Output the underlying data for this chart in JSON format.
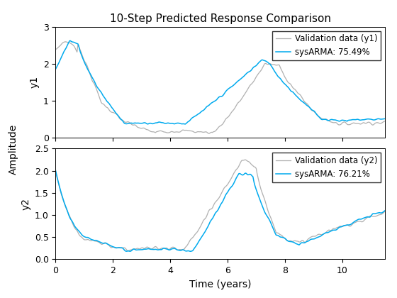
{
  "title": "10-Step Predicted Response Comparison",
  "xlabel": "Time (years)",
  "ylabel_shared": "Amplitude",
  "ylabel1": "y1",
  "ylabel2": "y2",
  "legend1": [
    "Validation data (y1)",
    "sysARMA: 75.49%"
  ],
  "legend2": [
    "Validation data (y2)",
    "sysARMA: 76.21%"
  ],
  "color_validation": "#b0b0b0",
  "color_model": "#00aaee",
  "xlim": [
    0,
    11.5
  ],
  "ylim1": [
    0,
    3
  ],
  "ylim2": [
    0,
    2.5
  ],
  "xticks": [
    0,
    2,
    4,
    6,
    8,
    10
  ],
  "yticks1": [
    0,
    1,
    2,
    3
  ],
  "yticks2": [
    0,
    0.5,
    1.0,
    1.5,
    2.0,
    2.5
  ],
  "n_points": 400,
  "noise_seed": 7
}
